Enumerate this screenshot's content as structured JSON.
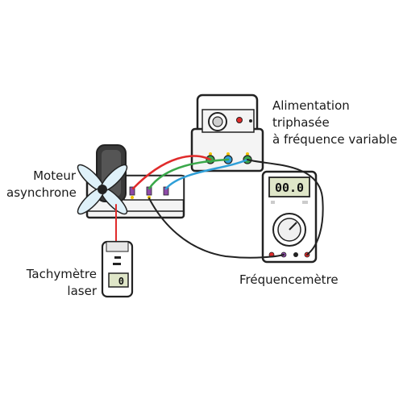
{
  "labels": {
    "power_supply": [
      "Alimentation",
      "triphasée",
      "à fréquence variable"
    ],
    "motor": [
      "Moteur",
      "asynchrone"
    ],
    "tachometer": [
      "Tachymètre",
      "laser"
    ],
    "frequency_meter": [
      "Fréquencemètre"
    ]
  },
  "displays": {
    "multimeter": "00.0",
    "tachometer": "0"
  },
  "colors": {
    "wire_red": "#e02b2b",
    "wire_green": "#3aa84a",
    "wire_blue": "#2f9fd8",
    "wire_black": "#222222",
    "terminal_purple": "#8e4aa8",
    "indicator_yellow": "#f2c200",
    "lcd_bg": "#dfe6c8",
    "outline": "#222222"
  },
  "icons": [
    "fan-blade-icon",
    "power-knob-icon",
    "rotary-dial-icon",
    "terminal-icon"
  ]
}
